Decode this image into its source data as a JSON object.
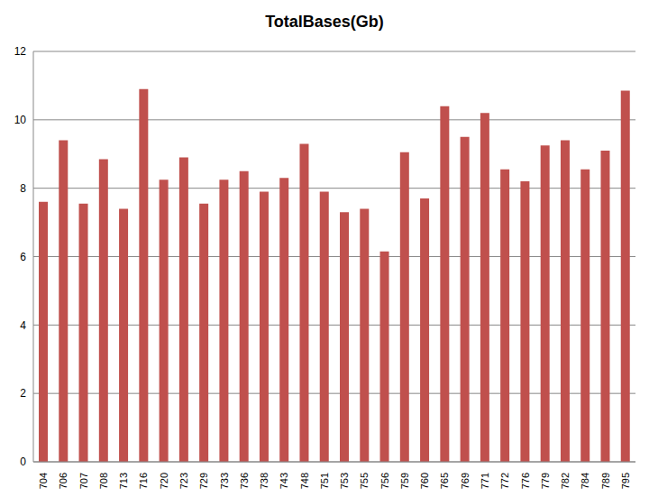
{
  "chart_data": {
    "type": "bar",
    "title": "TotalBases(Gb)",
    "categories": [
      "704",
      "706",
      "707",
      "708",
      "713",
      "716",
      "720",
      "723",
      "729",
      "733",
      "736",
      "738",
      "743",
      "748",
      "751",
      "753",
      "755",
      "756",
      "759",
      "760",
      "765",
      "769",
      "771",
      "772",
      "776",
      "779",
      "782",
      "784",
      "789",
      "795"
    ],
    "values": [
      7.6,
      9.4,
      7.55,
      8.85,
      7.4,
      10.9,
      8.25,
      8.9,
      7.55,
      8.25,
      8.5,
      7.9,
      8.3,
      9.3,
      7.9,
      7.3,
      7.4,
      6.15,
      9.05,
      7.7,
      10.4,
      9.5,
      10.2,
      8.55,
      8.2,
      9.25,
      9.4,
      8.55,
      9.1,
      10.85
    ],
    "color": "#c0504d",
    "ylim": [
      0,
      12
    ],
    "yticks": [
      0,
      2,
      4,
      6,
      8,
      10,
      12
    ],
    "grid": true
  }
}
